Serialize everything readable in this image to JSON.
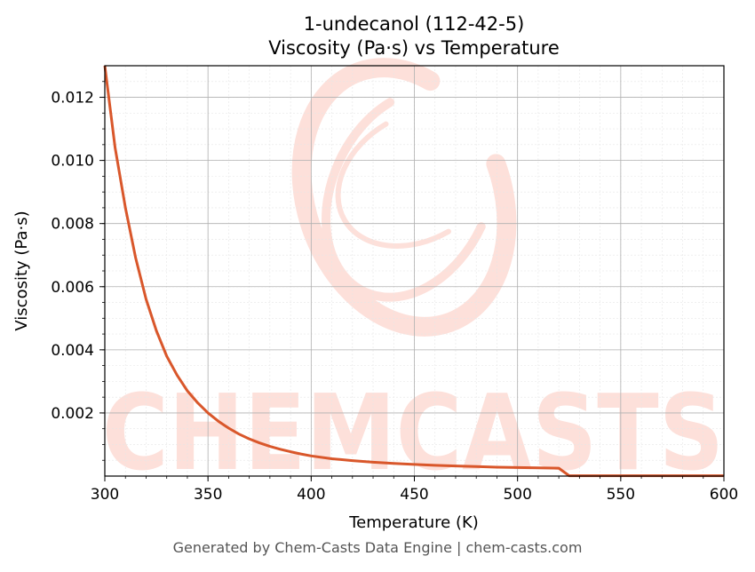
{
  "watermark": {
    "text": "CHEMCASTS",
    "color": "#fbd3cc"
  },
  "footer": {
    "text": "Generated by Chem-Casts Data Engine | chem-casts.com"
  },
  "chart_data": {
    "type": "line",
    "title": "1-undecanol (112-42-5)",
    "subtitle": "Viscosity (Pa·s) vs Temperature",
    "xlabel": "Temperature (K)",
    "ylabel": "Viscosity (Pa·s)",
    "xlim": [
      300,
      600
    ],
    "ylim": [
      0.0,
      0.013
    ],
    "xticks": [
      300,
      350,
      400,
      450,
      500,
      550,
      600
    ],
    "xtick_labels": [
      "300",
      "350",
      "400",
      "450",
      "500",
      "550",
      "600"
    ],
    "yticks": [
      0.002,
      0.004,
      0.006,
      0.008,
      0.01,
      0.012
    ],
    "ytick_labels": [
      "0.002",
      "0.004",
      "0.006",
      "0.008",
      "0.010",
      "0.012"
    ],
    "grid": true,
    "line_color": "#d9572b",
    "series": [
      {
        "x": [
          300,
          305,
          310,
          315,
          320,
          325,
          330,
          335,
          340,
          345,
          350,
          355,
          360,
          365,
          370,
          375,
          380,
          385,
          390,
          395,
          400,
          410,
          420,
          430,
          440,
          450,
          460,
          470,
          480,
          490,
          500,
          510,
          520,
          525,
          530,
          540,
          550,
          560,
          570,
          580,
          590,
          600
        ],
        "values": [
          0.013,
          0.0104,
          0.0085,
          0.0069,
          0.0056,
          0.0046,
          0.0038,
          0.0032,
          0.0027,
          0.00232,
          0.002,
          0.00174,
          0.00152,
          0.00133,
          0.00118,
          0.00105,
          0.00094,
          0.00085,
          0.00077,
          0.0007,
          0.00064,
          0.00055,
          0.00049,
          0.00044,
          0.0004,
          0.00037,
          0.00034,
          0.00032,
          0.0003,
          0.00028,
          0.00027,
          0.00026,
          0.00025,
          1e-05,
          1e-05,
          1e-05,
          1e-05,
          1e-05,
          1e-05,
          1e-05,
          1e-05,
          1e-05
        ]
      }
    ]
  }
}
